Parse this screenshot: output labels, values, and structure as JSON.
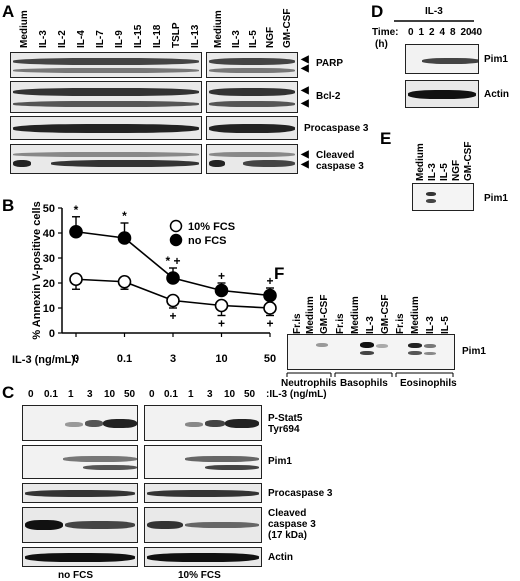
{
  "panels": {
    "A": "A",
    "B": "B",
    "C": "C",
    "D": "D",
    "E": "E",
    "F": "F"
  },
  "panelA": {
    "lanes_left": [
      "Medium",
      "IL-3",
      "IL-2",
      "IL-4",
      "IL-7",
      "IL-9",
      "IL-15",
      "IL-18",
      "TSLP",
      "IL-13"
    ],
    "lanes_right": [
      "Medium",
      "IL-3",
      "IL-5",
      "NGF",
      "GM-CSF"
    ],
    "blots": [
      "PARP",
      "Bcl-2",
      "Procaspase 3",
      "Cleaved caspase 3"
    ]
  },
  "panelB": {
    "il3_label": "IL-3 (ng/mL):",
    "ticks": [
      "0",
      "0.1",
      "3",
      "10",
      "50"
    ]
  },
  "chart_data": {
    "type": "line",
    "ylabel": "% Annexin V-positive cells",
    "ylim": [
      0,
      50
    ],
    "yticks": [
      0,
      10,
      20,
      30,
      40,
      50
    ],
    "categories": [
      "0",
      "0.1",
      "3",
      "10",
      "50"
    ],
    "legend_position": "top-right",
    "series": [
      {
        "name": "10% FCS",
        "marker": "open-circle",
        "values": [
          21.5,
          20.5,
          13,
          11,
          10
        ],
        "errors": [
          4,
          3,
          3,
          4,
          3
        ]
      },
      {
        "name": "no FCS",
        "marker": "filled-circle",
        "values": [
          40.5,
          38,
          22,
          17,
          15
        ],
        "errors": [
          6,
          6,
          4,
          3,
          3
        ]
      }
    ],
    "annotations": {
      "no_fcs": [
        "*",
        "*",
        "* +",
        "+",
        "+"
      ],
      "fcs_10": [
        "",
        "",
        "+",
        "+",
        "+"
      ]
    }
  },
  "panelC": {
    "header_label": ":IL-3 (ng/mL)",
    "conc": [
      "0",
      "0.1",
      "1",
      "3",
      "10",
      "50"
    ],
    "blots": [
      "P-Stat5 Tyr694",
      "Pim1",
      "Procaspase 3",
      "Cleaved caspase 3 (17 kDa)",
      "Actin"
    ],
    "group_left": "no FCS",
    "group_right": "10% FCS"
  },
  "panelD": {
    "title": "IL-3",
    "time_label": "Time:",
    "unit": "(h)",
    "times": [
      "0",
      "1",
      "2",
      "4",
      "8",
      "20",
      "40"
    ],
    "blots": [
      "Pim1",
      "Actin"
    ]
  },
  "panelE": {
    "lanes": [
      "Medium",
      "IL-3",
      "IL-5",
      "NGF",
      "GM-CSF"
    ],
    "blot": "Pim1"
  },
  "panelF": {
    "lanes": [
      "Fr.is",
      "Medium",
      "GM-CSF",
      "Fr.is",
      "Medium",
      "IL-3",
      "GM-CSF",
      "Fr.is",
      "Medium",
      "IL-3",
      "IL-5"
    ],
    "blot": "Pim1",
    "groups": [
      "Neutrophils",
      "Basophils",
      "Eosinophils"
    ]
  }
}
